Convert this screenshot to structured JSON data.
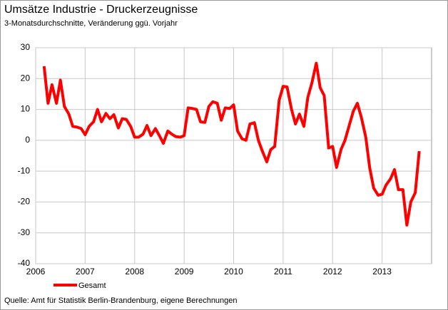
{
  "chart_data": {
    "type": "line",
    "title": "Umsätze Industrie - Druckerzeugnisse",
    "subtitle": "3-Monatsdurchschnitte, Veränderung ggü. Vorjahr",
    "source": "Quelle: Amt für Statistik Berlin-Brandenburg, eigene Berechnungen",
    "x": [
      2006.17,
      2006.25,
      2006.33,
      2006.42,
      2006.5,
      2006.58,
      2006.67,
      2006.75,
      2006.83,
      2006.92,
      2007.0,
      2007.08,
      2007.17,
      2007.25,
      2007.33,
      2007.42,
      2007.5,
      2007.58,
      2007.67,
      2007.75,
      2007.83,
      2007.92,
      2008.0,
      2008.08,
      2008.17,
      2008.25,
      2008.33,
      2008.42,
      2008.5,
      2008.58,
      2008.67,
      2008.75,
      2008.83,
      2008.92,
      2009.0,
      2009.08,
      2009.17,
      2009.25,
      2009.33,
      2009.42,
      2009.5,
      2009.58,
      2009.67,
      2009.75,
      2009.83,
      2009.92,
      2010.0,
      2010.08,
      2010.17,
      2010.25,
      2010.33,
      2010.42,
      2010.5,
      2010.58,
      2010.67,
      2010.75,
      2010.83,
      2010.92,
      2011.0,
      2011.08,
      2011.17,
      2011.25,
      2011.33,
      2011.42,
      2011.5,
      2011.58,
      2011.67,
      2011.75,
      2011.83,
      2011.92,
      2012.0,
      2012.08,
      2012.17,
      2012.25,
      2012.33,
      2012.42,
      2012.5,
      2012.58,
      2012.67,
      2012.75,
      2012.83,
      2012.92,
      2013.0,
      2013.08,
      2013.17,
      2013.25,
      2013.33,
      2013.42,
      2013.5,
      2013.58,
      2013.67,
      2013.75
    ],
    "series": [
      {
        "name": "Gesamt",
        "color": "#ff0000",
        "values": [
          24,
          12,
          18,
          12,
          19.5,
          11,
          8.5,
          4.5,
          4.3,
          3.8,
          1.8,
          4.5,
          6,
          10,
          6,
          8.7,
          7,
          8.3,
          4,
          7,
          6.8,
          4.5,
          1,
          1,
          2,
          4.8,
          1.5,
          3.8,
          1.5,
          -1,
          3,
          2,
          1.2,
          1,
          1.5,
          10.5,
          10.3,
          10,
          6,
          5.8,
          11,
          12.5,
          12,
          6.5,
          10.5,
          10.3,
          11.5,
          3,
          0.5,
          0,
          5.3,
          5.7,
          0,
          -3.5,
          -7,
          -3,
          -2,
          13,
          17.5,
          17.3,
          10,
          5.3,
          8.5,
          4.5,
          14,
          18.5,
          25,
          17,
          14.5,
          -2.5,
          -2,
          -8.8,
          -3,
          0,
          4.5,
          9.5,
          12,
          7.5,
          1,
          -9,
          -15.5,
          -17.8,
          -17.5,
          -14.5,
          -12.5,
          -9.5,
          -16,
          -16,
          -27.5,
          -20,
          -17,
          -3.5
        ]
      }
    ],
    "xlim": [
      2006,
      2014
    ],
    "xticks": [
      2006,
      2007,
      2008,
      2009,
      2010,
      2011,
      2012,
      2013
    ],
    "ylim": [
      -40,
      30
    ],
    "yticks": [
      -40,
      -30,
      -20,
      -10,
      0,
      10,
      20,
      30
    ],
    "grid": true
  }
}
